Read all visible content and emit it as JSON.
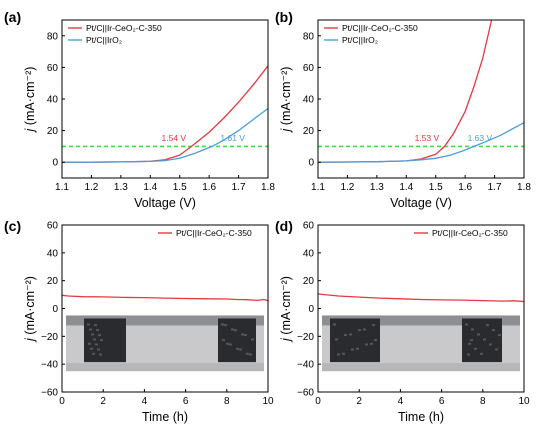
{
  "colors": {
    "red": "#e8383d",
    "blue": "#4a9fdb",
    "green": "#3ee03e"
  },
  "chart_data": [
    {
      "panel": "(a)",
      "type": "line",
      "xlabel": "Voltage (V)",
      "ylabel_main": "j",
      "ylabel_unit": "(mA·cm⁻²)",
      "xlim": [
        1.1,
        1.8
      ],
      "ylim": [
        -10,
        90
      ],
      "xticks": [
        "1.1",
        "1.2",
        "1.3",
        "1.4",
        "1.5",
        "1.6",
        "1.7",
        "1.8"
      ],
      "yticks": [
        "0",
        "20",
        "40",
        "60",
        "80"
      ],
      "ytick_values": [
        0,
        20,
        40,
        60,
        80
      ],
      "xtick_values": [
        1.1,
        1.2,
        1.3,
        1.4,
        1.5,
        1.6,
        1.7,
        1.8
      ],
      "hline": {
        "y": 10
      },
      "legend": {
        "placement": "top-left"
      },
      "series": [
        {
          "name": "Pt/C||Ir-CeO₂-C-350",
          "color": "#e8383d",
          "x": [
            1.1,
            1.2,
            1.3,
            1.4,
            1.45,
            1.5,
            1.54,
            1.6,
            1.65,
            1.7,
            1.75,
            1.8
          ],
          "y": [
            0,
            0,
            0.2,
            0.6,
            1.5,
            4.5,
            10,
            19,
            28,
            38,
            49,
            61
          ]
        },
        {
          "name": "Pt/C||IrO₂",
          "color": "#4a9fdb",
          "x": [
            1.1,
            1.2,
            1.3,
            1.4,
            1.45,
            1.5,
            1.55,
            1.61,
            1.65,
            1.7,
            1.75,
            1.8
          ],
          "y": [
            0,
            0,
            0.2,
            0.5,
            1.0,
            2.5,
            5.5,
            10,
            14,
            20,
            27,
            34
          ]
        }
      ],
      "annotations": [
        {
          "text": "1.54 V",
          "x": 1.48,
          "y": 13.5,
          "color": "#e8383d"
        },
        {
          "text": "1.61 V",
          "x": 1.68,
          "y": 13.5,
          "color": "#4a9fdb"
        }
      ]
    },
    {
      "panel": "(b)",
      "type": "line",
      "xlabel": "Voltage (V)",
      "ylabel_main": "j",
      "ylabel_unit": "(mA·cm⁻²)",
      "xlim": [
        1.1,
        1.8
      ],
      "ylim": [
        -10,
        90
      ],
      "xticks": [
        "1.1",
        "1.2",
        "1.3",
        "1.4",
        "1.5",
        "1.6",
        "1.7",
        "1.8"
      ],
      "yticks": [
        "0",
        "20",
        "40",
        "60",
        "80"
      ],
      "ytick_values": [
        0,
        20,
        40,
        60,
        80
      ],
      "xtick_values": [
        1.1,
        1.2,
        1.3,
        1.4,
        1.5,
        1.6,
        1.7,
        1.8
      ],
      "hline": {
        "y": 10
      },
      "legend": {
        "placement": "top-left"
      },
      "series": [
        {
          "name": "Pt/C||Ir-CeO₂-C-350",
          "color": "#e8383d",
          "x": [
            1.1,
            1.2,
            1.3,
            1.4,
            1.45,
            1.5,
            1.53,
            1.56,
            1.6,
            1.63,
            1.66,
            1.69
          ],
          "y": [
            0,
            0.1,
            0.3,
            0.8,
            2,
            5,
            10,
            18,
            32,
            48,
            66,
            90
          ]
        },
        {
          "name": "Pt/C||IrO₂",
          "color": "#4a9fdb",
          "x": [
            1.1,
            1.2,
            1.3,
            1.4,
            1.45,
            1.5,
            1.55,
            1.59,
            1.63,
            1.67,
            1.72,
            1.76,
            1.8
          ],
          "y": [
            0,
            0.1,
            0.3,
            0.8,
            1.5,
            2.5,
            4.5,
            7,
            10,
            13,
            17,
            21,
            25
          ]
        }
      ],
      "annotations": [
        {
          "text": "1.53 V",
          "x": 1.47,
          "y": 13.5,
          "color": "#e8383d"
        },
        {
          "text": "1.63 V",
          "x": 1.65,
          "y": 13.5,
          "color": "#4a9fdb"
        }
      ]
    },
    {
      "panel": "(c)",
      "type": "line",
      "xlabel": "Time (h)",
      "ylabel_main": "j",
      "ylabel_unit": "(mA·cm⁻²)",
      "xlim": [
        0,
        10
      ],
      "ylim": [
        -60,
        60
      ],
      "xticks": [
        "0",
        "2",
        "4",
        "6",
        "8",
        "10"
      ],
      "yticks": [
        "−60",
        "−40",
        "−20",
        "0",
        "20",
        "40",
        "60"
      ],
      "ytick_values": [
        -60,
        -40,
        -20,
        0,
        20,
        40,
        60
      ],
      "xtick_values": [
        0,
        2,
        4,
        6,
        8,
        10
      ],
      "legend": {
        "placement": "top-right"
      },
      "inset_photo": true,
      "series": [
        {
          "name": "Pt/C||Ir-CeO₂-C-350",
          "color": "#e8383d",
          "x": [
            0,
            0.3,
            1,
            2,
            3,
            4,
            5,
            6,
            7,
            8,
            8.5,
            9,
            9.5,
            9.8,
            10
          ],
          "y": [
            9.5,
            9,
            8.5,
            8.3,
            8,
            7.8,
            7.5,
            7.2,
            7,
            6.8,
            6.5,
            6.3,
            5.8,
            6.5,
            5.5
          ]
        }
      ]
    },
    {
      "panel": "(d)",
      "type": "line",
      "xlabel": "Time (h)",
      "ylabel_main": "j",
      "ylabel_unit": "(mA·cm⁻²)",
      "xlim": [
        0,
        10
      ],
      "ylim": [
        -60,
        60
      ],
      "xticks": [
        "0",
        "2",
        "4",
        "6",
        "8",
        "10"
      ],
      "yticks": [
        "−60",
        "−40",
        "−20",
        "0",
        "20",
        "40",
        "60"
      ],
      "ytick_values": [
        -60,
        -40,
        -20,
        0,
        20,
        40,
        60
      ],
      "xtick_values": [
        0,
        2,
        4,
        6,
        8,
        10
      ],
      "legend": {
        "placement": "top-right"
      },
      "inset_photo": true,
      "series": [
        {
          "name": "Pt/C||Ir-CeO₂-C-350",
          "color": "#e8383d",
          "x": [
            0,
            0.3,
            1,
            2,
            3,
            4,
            5,
            6,
            7,
            8,
            9,
            9.5,
            10
          ],
          "y": [
            10.5,
            10,
            9,
            8.2,
            7.5,
            7,
            6.5,
            6.2,
            6,
            5.7,
            5.3,
            5.5,
            5
          ]
        }
      ]
    }
  ]
}
